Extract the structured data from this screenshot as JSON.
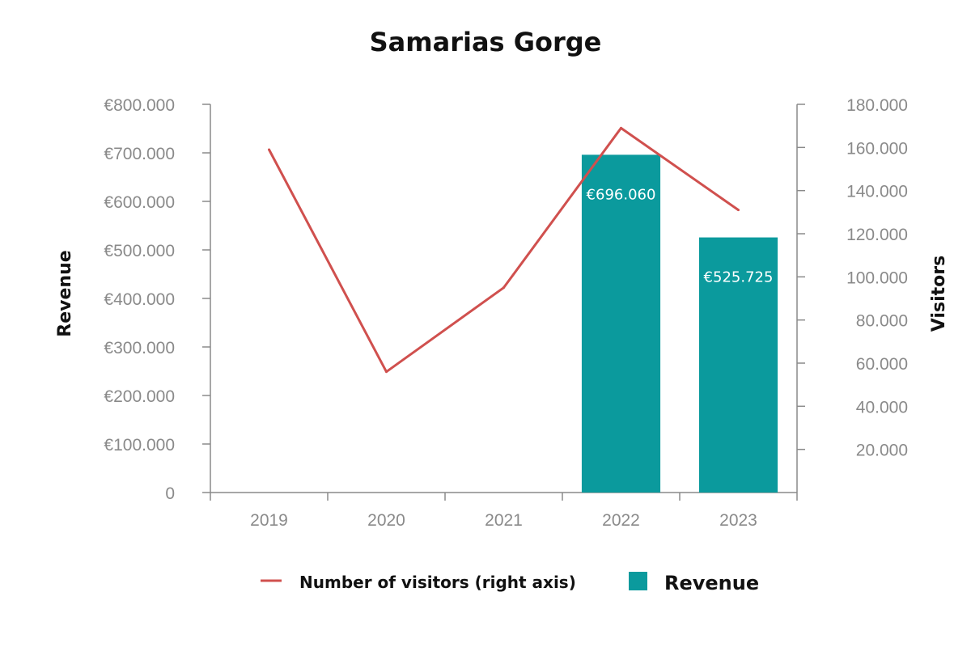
{
  "chart_data": {
    "type": "bar",
    "title": "Samarias Gorge",
    "categories": [
      "2019",
      "2020",
      "2021",
      "2022",
      "2023"
    ],
    "y_left": {
      "label": "Revenue",
      "lim": [
        0,
        800000
      ],
      "ticks": [
        "0",
        "€100.000",
        "€200.000",
        "€300.000",
        "€400.000",
        "€500.000",
        "€600.000",
        "€700.000",
        "€800.000"
      ],
      "tick_values": [
        0,
        100000,
        200000,
        300000,
        400000,
        500000,
        600000,
        700000,
        800000
      ]
    },
    "y_right": {
      "label": "Visitors",
      "lim": [
        0,
        180000
      ],
      "ticks": [
        "20.000",
        "40.000",
        "60.000",
        "80.000",
        "100.000",
        "120.000",
        "140.000",
        "160.000",
        "180.000"
      ],
      "tick_values": [
        20000,
        40000,
        60000,
        80000,
        100000,
        120000,
        140000,
        160000,
        180000
      ]
    },
    "series": [
      {
        "name": "Revenue",
        "type": "bar",
        "axis": "left",
        "color": "#0b9a9d",
        "values": [
          null,
          null,
          null,
          696060,
          525725
        ],
        "labels": [
          null,
          null,
          null,
          "€696.060",
          "€525.725"
        ]
      },
      {
        "name": "Number of visitors (right axis)",
        "type": "line",
        "axis": "right",
        "color": "#d0504e",
        "values": [
          159000,
          56000,
          95000,
          169000,
          131000
        ]
      }
    ],
    "legend": {
      "position": "bottom",
      "items": [
        {
          "label": "Number of visitors (right axis)",
          "symbol": "line",
          "color": "#d0504e"
        },
        {
          "label": "Revenue",
          "symbol": "square",
          "color": "#0b9a9d"
        }
      ]
    },
    "grid": false
  }
}
